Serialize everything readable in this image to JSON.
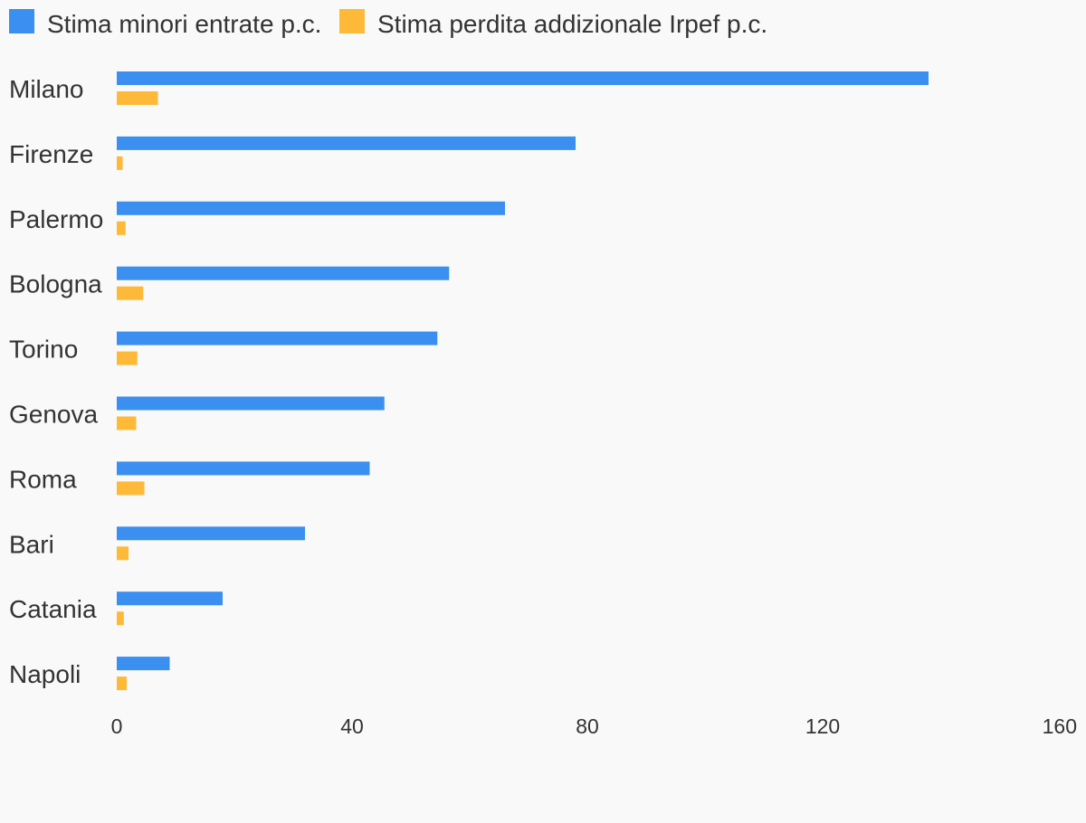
{
  "chart_data": {
    "type": "bar",
    "orientation": "horizontal",
    "categories": [
      "Milano",
      "Firenze",
      "Palermo",
      "Bologna",
      "Torino",
      "Genova",
      "Roma",
      "Bari",
      "Catania",
      "Napoli"
    ],
    "series": [
      {
        "name": "Stima minori entrate p.c.",
        "color": "#3a8ff0",
        "values": [
          138,
          78,
          66,
          56.5,
          54.5,
          45.5,
          43,
          32,
          18,
          9
        ]
      },
      {
        "name": "Stima perdita addizionale Irpef p.c.",
        "color": "#ffb938",
        "values": [
          7,
          1,
          1.5,
          4.5,
          3.5,
          3.3,
          4.7,
          2,
          1.2,
          1.7
        ]
      }
    ],
    "xlim": [
      0,
      160
    ],
    "xticks": [
      "0",
      "40",
      "80",
      "120",
      "160"
    ],
    "title": "",
    "xlabel": "",
    "ylabel": "",
    "legend_position": "top-left",
    "grid": false
  }
}
